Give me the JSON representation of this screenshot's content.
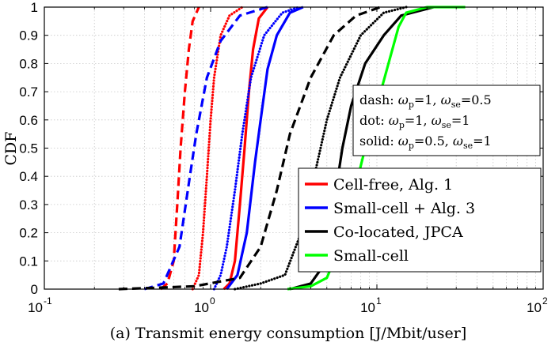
{
  "chart_data": {
    "type": "line",
    "title": "",
    "xlabel": "(a) Transmit energy consumption [J/Mbit/user]",
    "ylabel": "CDF",
    "xscale": "log",
    "xlim": [
      0.1,
      100
    ],
    "ylim": [
      0,
      1
    ],
    "grid": true,
    "x_ticks": [
      {
        "value": 0.1,
        "base": "10",
        "exp": "-1"
      },
      {
        "value": 1,
        "base": "10",
        "exp": "0"
      },
      {
        "value": 10,
        "base": "10",
        "exp": "1"
      },
      {
        "value": 100,
        "base": "10",
        "exp": "2"
      }
    ],
    "y_ticks": [
      {
        "value": 0,
        "label": "0"
      },
      {
        "value": 0.1,
        "label": "0.1"
      },
      {
        "value": 0.2,
        "label": "0.2"
      },
      {
        "value": 0.3,
        "label": "0.3"
      },
      {
        "value": 0.4,
        "label": "0.4"
      },
      {
        "value": 0.5,
        "label": "0.5"
      },
      {
        "value": 0.6,
        "label": "0.6"
      },
      {
        "value": 0.7,
        "label": "0.7"
      },
      {
        "value": 0.8,
        "label": "0.8"
      },
      {
        "value": 0.9,
        "label": "0.9"
      },
      {
        "value": 1,
        "label": "1"
      }
    ],
    "series": [
      {
        "name": "Cell-free, Alg. 1 (dash)",
        "color": "#ff0000",
        "style": "dash",
        "points": [
          [
            0.5,
            0
          ],
          [
            0.55,
            0.02
          ],
          [
            0.6,
            0.1
          ],
          [
            0.63,
            0.3
          ],
          [
            0.66,
            0.5
          ],
          [
            0.7,
            0.7
          ],
          [
            0.74,
            0.85
          ],
          [
            0.78,
            0.95
          ],
          [
            0.85,
            1
          ]
        ]
      },
      {
        "name": "Cell-free, Alg. 1 (dot)",
        "color": "#ff0000",
        "style": "dot",
        "points": [
          [
            0.78,
            0
          ],
          [
            0.85,
            0.05
          ],
          [
            0.9,
            0.2
          ],
          [
            0.95,
            0.4
          ],
          [
            1.0,
            0.6
          ],
          [
            1.05,
            0.75
          ],
          [
            1.15,
            0.9
          ],
          [
            1.3,
            0.97
          ],
          [
            1.55,
            1
          ]
        ]
      },
      {
        "name": "Cell-free, Alg. 1 (solid)",
        "color": "#ff0000",
        "style": "solid",
        "points": [
          [
            1.2,
            0
          ],
          [
            1.3,
            0.02
          ],
          [
            1.4,
            0.1
          ],
          [
            1.5,
            0.3
          ],
          [
            1.6,
            0.5
          ],
          [
            1.7,
            0.7
          ],
          [
            1.8,
            0.85
          ],
          [
            1.95,
            0.96
          ],
          [
            2.2,
            1
          ]
        ]
      },
      {
        "name": "Small-cell + Alg. 3 (dash)",
        "color": "#0000ff",
        "style": "dash",
        "points": [
          [
            0.4,
            0
          ],
          [
            0.52,
            0.02
          ],
          [
            0.65,
            0.15
          ],
          [
            0.75,
            0.4
          ],
          [
            0.82,
            0.55
          ],
          [
            0.95,
            0.75
          ],
          [
            1.15,
            0.88
          ],
          [
            1.5,
            0.97
          ],
          [
            2.2,
            1
          ]
        ]
      },
      {
        "name": "Small-cell + Alg. 3 (dot)",
        "color": "#0000ff",
        "style": "dot",
        "points": [
          [
            1.05,
            0
          ],
          [
            1.15,
            0.05
          ],
          [
            1.25,
            0.15
          ],
          [
            1.4,
            0.35
          ],
          [
            1.55,
            0.55
          ],
          [
            1.75,
            0.75
          ],
          [
            2.1,
            0.9
          ],
          [
            2.7,
            0.98
          ],
          [
            3.4,
            1
          ]
        ]
      },
      {
        "name": "Small-cell + Alg. 3 (solid)",
        "color": "#0000ff",
        "style": "solid",
        "points": [
          [
            1.25,
            0
          ],
          [
            1.45,
            0.05
          ],
          [
            1.65,
            0.2
          ],
          [
            1.85,
            0.45
          ],
          [
            2.0,
            0.6
          ],
          [
            2.2,
            0.78
          ],
          [
            2.5,
            0.9
          ],
          [
            3.0,
            0.98
          ],
          [
            3.6,
            1
          ]
        ]
      },
      {
        "name": "Co-located, JPCA (dash)",
        "color": "#000000",
        "style": "dash",
        "points": [
          [
            0.28,
            0
          ],
          [
            0.8,
            0.01
          ],
          [
            1.5,
            0.04
          ],
          [
            2.0,
            0.15
          ],
          [
            2.5,
            0.35
          ],
          [
            3.0,
            0.55
          ],
          [
            4.0,
            0.75
          ],
          [
            5.5,
            0.9
          ],
          [
            7.5,
            0.97
          ],
          [
            10.5,
            1
          ]
        ]
      },
      {
        "name": "Co-located, JPCA (dot)",
        "color": "#000000",
        "style": "dot",
        "points": [
          [
            1.4,
            0
          ],
          [
            2.0,
            0.02
          ],
          [
            2.8,
            0.05
          ],
          [
            3.5,
            0.2
          ],
          [
            4.2,
            0.4
          ],
          [
            5.0,
            0.6
          ],
          [
            6.0,
            0.75
          ],
          [
            8.0,
            0.9
          ],
          [
            11.0,
            0.98
          ],
          [
            15.0,
            1
          ]
        ]
      },
      {
        "name": "Co-located, JPCA (solid)",
        "color": "#000000",
        "style": "solid",
        "points": [
          [
            3.0,
            0
          ],
          [
            4.0,
            0.02
          ],
          [
            5.0,
            0.1
          ],
          [
            5.5,
            0.3
          ],
          [
            6.2,
            0.5
          ],
          [
            7.0,
            0.65
          ],
          [
            8.5,
            0.8
          ],
          [
            11.0,
            0.9
          ],
          [
            14.0,
            0.97
          ],
          [
            22.0,
            1
          ]
        ]
      },
      {
        "name": "Small-cell (solid)",
        "color": "#00ff00",
        "style": "solid",
        "points": [
          [
            2.9,
            0
          ],
          [
            4.0,
            0.01
          ],
          [
            5.0,
            0.04
          ],
          [
            6.0,
            0.15
          ],
          [
            7.0,
            0.3
          ],
          [
            8.5,
            0.5
          ],
          [
            10.0,
            0.65
          ],
          [
            12.0,
            0.82
          ],
          [
            13.5,
            0.93
          ],
          [
            15.0,
            0.98
          ],
          [
            20.0,
            1
          ],
          [
            34.0,
            1
          ]
        ]
      }
    ],
    "legend": {
      "placement": "lower-right",
      "entries": [
        {
          "label": "Cell-free, Alg. 1",
          "color": "#ff0000"
        },
        {
          "label": "Small-cell + Alg. 3",
          "color": "#0000ff"
        },
        {
          "label": "Co-located, JPCA",
          "color": "#000000"
        },
        {
          "label": "Small-cell",
          "color": "#00ff00"
        }
      ]
    },
    "annotation": {
      "placement": "right-middle",
      "lines": [
        {
          "prefix": "dash:",
          "p": "1",
          "se": "0.5"
        },
        {
          "prefix": "dot:",
          "p": "1",
          "se": "1"
        },
        {
          "prefix": "solid:",
          "p": "0.5",
          "se": "1"
        }
      ],
      "omega": "ω",
      "sub_p": "p",
      "sub_se": "se"
    }
  }
}
